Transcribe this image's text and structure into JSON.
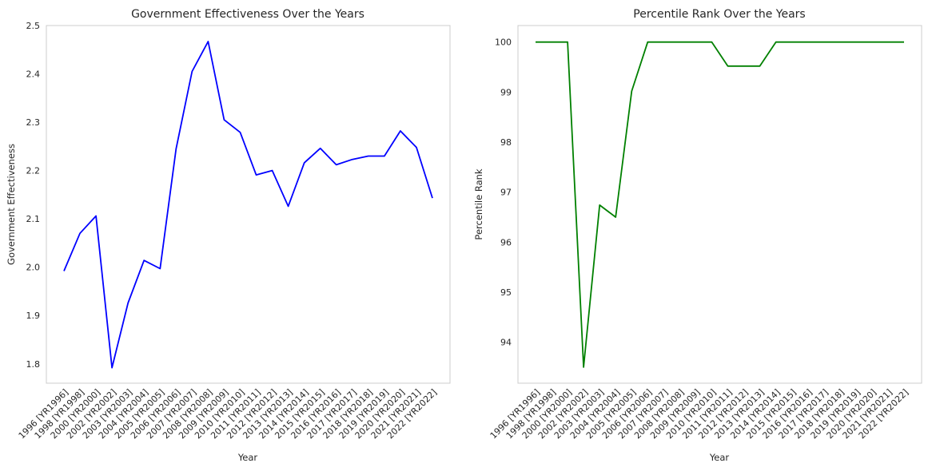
{
  "chart_data": [
    {
      "type": "line",
      "title": "Government Effectiveness Over the Years",
      "xlabel": "Year",
      "ylabel": "Government Effectiveness",
      "categories": [
        "1996 [YR1996]",
        "1998 [YR1998]",
        "2000 [YR2000]",
        "2002 [YR2002]",
        "2003 [YR2003]",
        "2004 [YR2004]",
        "2005 [YR2005]",
        "2006 [YR2006]",
        "2007 [YR2007]",
        "2008 [YR2008]",
        "2009 [YR2009]",
        "2010 [YR2010]",
        "2011 [YR2011]",
        "2012 [YR2012]",
        "2013 [YR2013]",
        "2014 [YR2014]",
        "2015 [YR2015]",
        "2016 [YR2016]",
        "2017 [YR2017]",
        "2018 [YR2018]",
        "2019 [YR2019]",
        "2020 [YR2020]",
        "2021 [YR2021]",
        "2022 [YR2022]"
      ],
      "values": [
        1.992,
        2.07,
        2.106,
        1.792,
        1.926,
        2.014,
        1.997,
        2.245,
        2.405,
        2.467,
        2.305,
        2.279,
        2.191,
        2.2,
        2.126,
        2.216,
        2.246,
        2.212,
        2.223,
        2.23,
        2.23,
        2.282,
        2.248,
        2.143
      ],
      "color": "#0000ff",
      "ylim": [
        1.76,
        2.5
      ],
      "yticks": [
        "1.8",
        "1.9",
        "2.0",
        "2.1",
        "2.2",
        "2.3",
        "2.4",
        "2.5"
      ],
      "grid": false
    },
    {
      "type": "line",
      "title": "Percentile Rank Over the Years",
      "xlabel": "Year",
      "ylabel": "Percentile Rank",
      "categories": [
        "1996 [YR1996]",
        "1998 [YR1998]",
        "2000 [YR2000]",
        "2002 [YR2002]",
        "2003 [YR2003]",
        "2004 [YR2004]",
        "2005 [YR2005]",
        "2006 [YR2006]",
        "2007 [YR2007]",
        "2008 [YR2008]",
        "2009 [YR2009]",
        "2010 [YR2010]",
        "2011 [YR2011]",
        "2012 [YR2012]",
        "2013 [YR2013]",
        "2014 [YR2014]",
        "2015 [YR2015]",
        "2016 [YR2016]",
        "2017 [YR2017]",
        "2018 [YR2018]",
        "2019 [YR2019]",
        "2020 [YR2020]",
        "2021 [YR2021]",
        "2022 [YR2022]"
      ],
      "values": [
        100,
        100,
        100,
        93.5,
        96.74,
        96.5,
        99.02,
        100,
        100,
        100,
        100,
        100,
        99.52,
        99.52,
        99.52,
        100,
        100,
        100,
        100,
        100,
        100,
        100,
        100,
        100
      ],
      "color": "#008000",
      "ylim": [
        93.18,
        100.33
      ],
      "yticks": [
        "94",
        "95",
        "96",
        "97",
        "98",
        "99",
        "100"
      ],
      "grid": false
    }
  ]
}
